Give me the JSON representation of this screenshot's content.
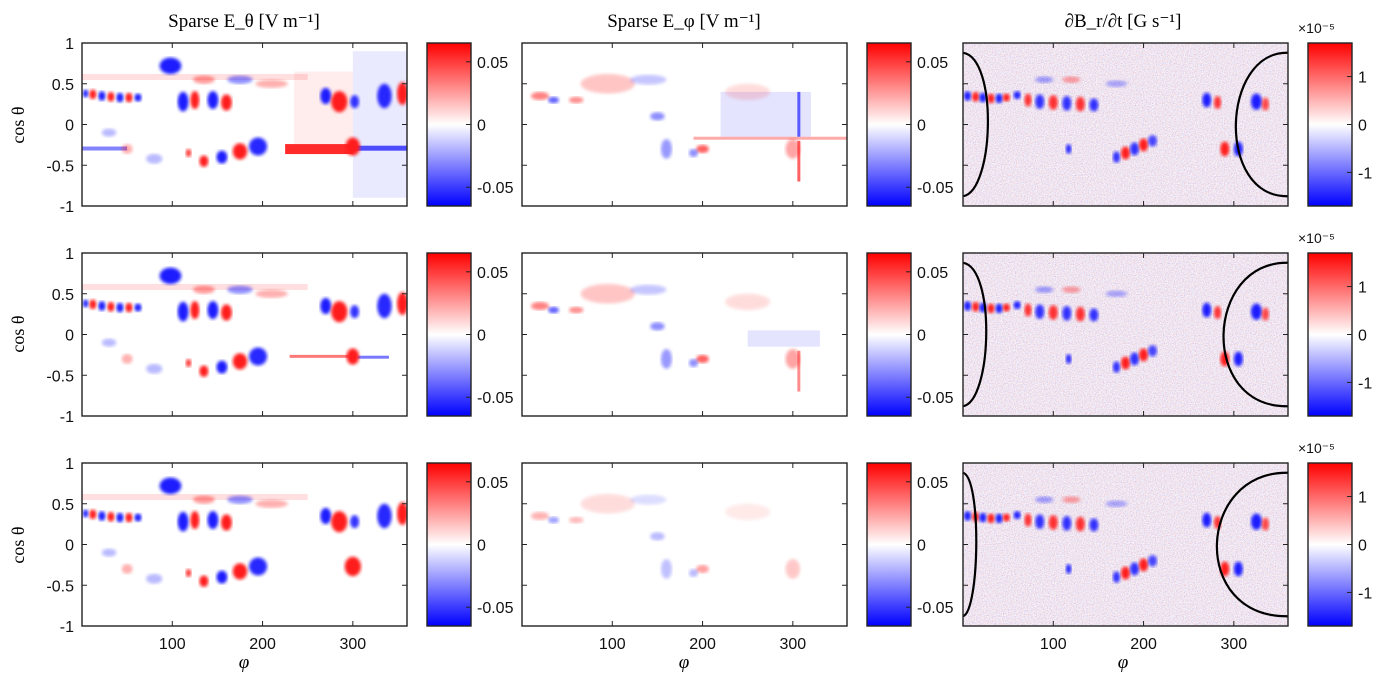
{
  "figure": {
    "column_titles": [
      "Sparse E_θ [V m⁻¹]",
      "Sparse E_φ [V m⁻¹]",
      "∂B_r/∂t [G s⁻¹]"
    ],
    "row_ylabel": "cos θ",
    "xlabel": "φ",
    "colorbar_exponent": "×10⁻⁵"
  },
  "chart_data": [
    {
      "type": "heatmap",
      "row": 1,
      "col": 1,
      "title": "Sparse E_θ [V m⁻¹]",
      "ylabel": "cos θ",
      "x_ticks": [],
      "y_ticks": [
        "1",
        "0.5",
        "0",
        "-0.5",
        "-1"
      ],
      "xlim": [
        0,
        360
      ],
      "ylim": [
        -1,
        1
      ],
      "colorbar": {
        "ticks": [
          "0.05",
          "0",
          "-0.05"
        ],
        "range": [
          -0.065,
          0.065
        ]
      }
    },
    {
      "type": "heatmap",
      "row": 1,
      "col": 2,
      "title": "Sparse E_φ [V m⁻¹]",
      "x_ticks": [],
      "y_ticks": [],
      "xlim": [
        0,
        360
      ],
      "ylim": [
        -1,
        1
      ],
      "colorbar": {
        "ticks": [
          "0.05",
          "0",
          "-0.05"
        ],
        "range": [
          -0.065,
          0.065
        ]
      }
    },
    {
      "type": "heatmap",
      "row": 1,
      "col": 3,
      "title": "∂B_r/∂t [G s⁻¹]",
      "x_ticks": [],
      "y_ticks": [],
      "xlim": [
        0,
        360
      ],
      "ylim": [
        -1,
        1
      ],
      "colorbar": {
        "ticks": [
          "1",
          "0",
          "-1"
        ],
        "range": [
          -1.7,
          1.7
        ],
        "exponent": "×10⁻⁵"
      },
      "contours": [
        {
          "side": "left",
          "half_width": 30
        },
        {
          "side": "right",
          "half_width": 55
        }
      ]
    },
    {
      "type": "heatmap",
      "row": 2,
      "col": 1,
      "ylabel": "cos θ",
      "x_ticks": [],
      "y_ticks": [
        "1",
        "0.5",
        "0",
        "-0.5",
        "-1"
      ],
      "xlim": [
        0,
        360
      ],
      "ylim": [
        -1,
        1
      ],
      "colorbar": {
        "ticks": [
          "0.05",
          "0",
          "-0.05"
        ],
        "range": [
          -0.065,
          0.065
        ]
      }
    },
    {
      "type": "heatmap",
      "row": 2,
      "col": 2,
      "x_ticks": [],
      "y_ticks": [],
      "xlim": [
        0,
        360
      ],
      "ylim": [
        -1,
        1
      ],
      "colorbar": {
        "ticks": [
          "0.05",
          "0",
          "-0.05"
        ],
        "range": [
          -0.065,
          0.065
        ]
      }
    },
    {
      "type": "heatmap",
      "row": 2,
      "col": 3,
      "x_ticks": [],
      "y_ticks": [],
      "xlim": [
        0,
        360
      ],
      "ylim": [
        -1,
        1
      ],
      "colorbar": {
        "ticks": [
          "1",
          "0",
          "-1"
        ],
        "range": [
          -1.7,
          1.7
        ],
        "exponent": "×10⁻⁵"
      },
      "contours": [
        {
          "side": "left",
          "half_width": 28
        },
        {
          "side": "right",
          "half_width": 68
        }
      ]
    },
    {
      "type": "heatmap",
      "row": 3,
      "col": 1,
      "ylabel": "cos θ",
      "xlabel": "φ",
      "x_ticks": [
        "100",
        "200",
        "300"
      ],
      "y_ticks": [
        "1",
        "0.5",
        "0",
        "-0.5",
        "-1"
      ],
      "xlim": [
        0,
        360
      ],
      "ylim": [
        -1,
        1
      ],
      "colorbar": {
        "ticks": [
          "0.05",
          "0",
          "-0.05"
        ],
        "range": [
          -0.065,
          0.065
        ]
      }
    },
    {
      "type": "heatmap",
      "row": 3,
      "col": 2,
      "xlabel": "φ",
      "x_ticks": [
        "100",
        "200",
        "300"
      ],
      "y_ticks": [],
      "xlim": [
        0,
        360
      ],
      "ylim": [
        -1,
        1
      ],
      "colorbar": {
        "ticks": [
          "0.05",
          "0",
          "-0.05"
        ],
        "range": [
          -0.065,
          0.065
        ]
      }
    },
    {
      "type": "heatmap",
      "row": 3,
      "col": 3,
      "xlabel": "φ",
      "x_ticks": [
        "100",
        "200",
        "300"
      ],
      "y_ticks": [],
      "xlim": [
        0,
        360
      ],
      "ylim": [
        -1,
        1
      ],
      "colorbar": {
        "ticks": [
          "1",
          "0",
          "-1"
        ],
        "range": [
          -1.7,
          1.7
        ],
        "exponent": "×10⁻⁵"
      },
      "contours": [
        {
          "side": "left",
          "half_width": 16
        },
        {
          "side": "right",
          "half_width": 75
        }
      ]
    }
  ]
}
